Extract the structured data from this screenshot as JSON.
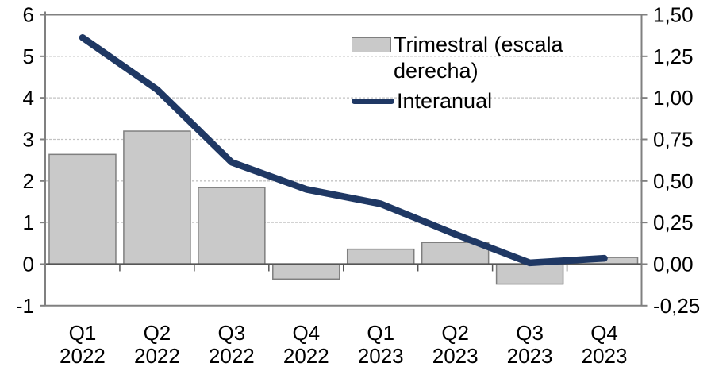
{
  "chart_data": {
    "type": "combo",
    "title": "",
    "categories": [
      {
        "quarter": "Q1",
        "year": "2022"
      },
      {
        "quarter": "Q2",
        "year": "2022"
      },
      {
        "quarter": "Q3",
        "year": "2022"
      },
      {
        "quarter": "Q4",
        "year": "2022"
      },
      {
        "quarter": "Q1",
        "year": "2023"
      },
      {
        "quarter": "Q2",
        "year": "2023"
      },
      {
        "quarter": "Q3",
        "year": "2023"
      },
      {
        "quarter": "Q4",
        "year": "2023"
      }
    ],
    "series": [
      {
        "name": "Trimestral (escala derecha)",
        "type": "bar",
        "axis": "right",
        "values": [
          0.66,
          0.8,
          0.46,
          -0.09,
          0.09,
          0.13,
          -0.12,
          0.04
        ]
      },
      {
        "name": "Interanual",
        "type": "line",
        "axis": "left",
        "values": [
          5.45,
          4.2,
          2.45,
          1.8,
          1.45,
          0.72,
          0.03,
          0.14
        ]
      }
    ],
    "left_axis": {
      "min": -1,
      "max": 6,
      "tick_values": [
        6,
        5,
        4,
        3,
        2,
        1,
        0,
        -1
      ],
      "tick_labels": [
        "6",
        "5",
        "4",
        "3",
        "2",
        "1",
        "0",
        "-1"
      ]
    },
    "right_axis": {
      "min": -0.25,
      "max": 1.5,
      "tick_values": [
        1.5,
        1.25,
        1.0,
        0.75,
        0.5,
        0.25,
        0.0,
        -0.25
      ],
      "tick_labels": [
        "1,50",
        "1,25",
        "1,00",
        "0,75",
        "0,50",
        "0,25",
        "0,00",
        "-0,25"
      ]
    },
    "grid": true,
    "legend_position": "top-right",
    "colors": {
      "bar_fill": "#c9c9c9",
      "bar_border": "#7f7f7f",
      "line": "#1f3864",
      "grid": "#c3c3c3",
      "axis_border": "#808080",
      "zero_line": "#565656",
      "text": "#000000"
    }
  }
}
